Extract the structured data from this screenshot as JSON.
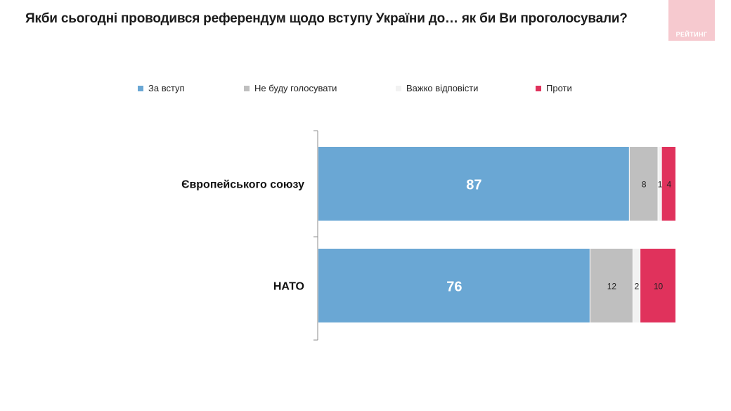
{
  "title": "Якби сьогодні проводився референдум щодо вступу України до… як би Ви проголосували?",
  "logo": {
    "text": "РЕЙТИНГ"
  },
  "colors": {
    "za_vstup": "#6aa7d4",
    "ne_budu": "#bfbfbf",
    "vazhko": "#f2f2f2",
    "proty": "#e0325c",
    "logo_bg": "#f6c9cf"
  },
  "chart_data": {
    "type": "bar",
    "orientation": "horizontal",
    "stacked": true,
    "categories": [
      "Європейського союзу",
      "НАТО"
    ],
    "series": [
      {
        "name": "За вступ",
        "values": [
          87,
          76
        ]
      },
      {
        "name": "Не буду голосувати",
        "values": [
          8,
          12
        ]
      },
      {
        "name": "Важко відповісти",
        "values": [
          1,
          2
        ]
      },
      {
        "name": "Проти",
        "values": [
          4,
          10
        ]
      }
    ],
    "title": "Якби сьогодні проводився референдум щодо вступу України до… як би Ви проголосували?",
    "xlabel": "",
    "ylabel": "",
    "xlim": [
      0,
      100
    ],
    "grid": false,
    "legend": "top"
  }
}
